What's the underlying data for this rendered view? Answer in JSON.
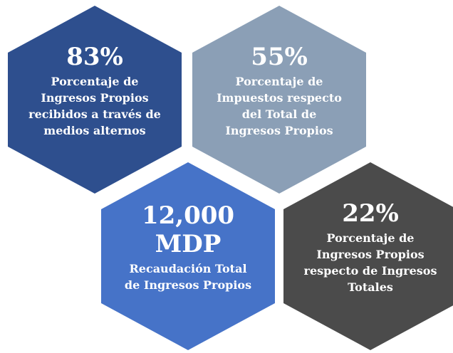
{
  "hexagons": [
    {
      "value": [
        "83%"
      ],
      "label": [
        "Porcentaje de",
        "Ingresos Propios",
        "recibidos a través de",
        "medios alternos"
      ],
      "color": "#2e4f8e"
    },
    {
      "value": [
        "55%"
      ],
      "label": [
        "Porcentaje de",
        "Impuestos respecto",
        "del Total de",
        "Ingresos Propios"
      ],
      "color": "#8b9fb6"
    },
    {
      "value": [
        "12,000",
        "MDP"
      ],
      "label": [
        "Recaudación Total",
        "de Ingresos Propios"
      ],
      "color": "#4673c8"
    },
    {
      "value": [
        "22%"
      ],
      "label": [
        "Porcentaje de",
        "Ingresos Propios",
        "respecto de Ingresos",
        "Totales"
      ],
      "color": "#4b4b4b"
    }
  ]
}
